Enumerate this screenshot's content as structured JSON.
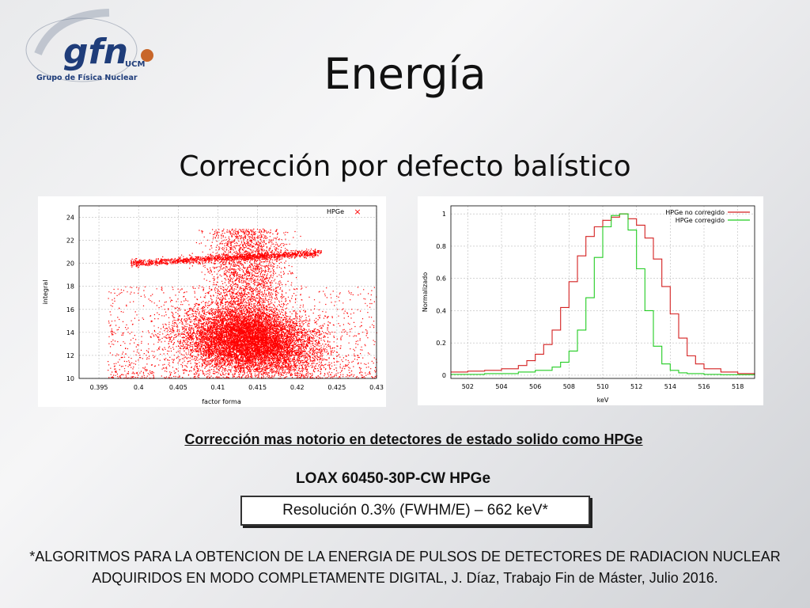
{
  "logo": {
    "text": "gfn",
    "sub": "UCM",
    "caption": "Grupo de Física Nuclear"
  },
  "slide": {
    "title": "Energía",
    "subtitle": "Corrección por defecto balístico",
    "note": "Corrección mas notorio en detectores de estado solido como HPGe",
    "detector": "LOAX 60450-30P-CW HPGe",
    "resolution": "Resolución 0.3% (FWHM/E) – 662 keV*",
    "reference": "*ALGORITMOS PARA LA OBTENCION DE LA ENERGIA DE PULSOS DE DETECTORES DE RADIACION NUCLEAR ADQUIRIDOS EN MODO COMPLETAMENTE DIGITAL, J. Díaz, Trabajo Fin de Máster, Julio 2016."
  },
  "chart_data": [
    {
      "type": "scatter",
      "xlabel": "factor forma",
      "ylabel": "integral",
      "xlim": [
        0.3925,
        0.43
      ],
      "ylim": [
        10,
        25
      ],
      "xticks": [
        "0.395",
        "0.4",
        "0.405",
        "0.41",
        "0.415",
        "0.42",
        "0.425",
        "0.43"
      ],
      "yticks": [
        "10",
        "12",
        "14",
        "16",
        "18",
        "20",
        "22",
        "24"
      ],
      "grid": true,
      "legend_position": "top-right",
      "series": [
        {
          "name": "HPGe",
          "color": "#ff0000",
          "marker": "×"
        }
      ],
      "clusters": [
        {
          "label": "band",
          "x_range": [
            0.399,
            0.423
          ],
          "y_at_start": 20.0,
          "y_at_end": 20.9
        },
        {
          "label": "main",
          "center": [
            0.414,
            13.2
          ],
          "x_spread": [
            0.405,
            0.428
          ],
          "y_spread": [
            10,
            18
          ]
        },
        {
          "label": "column",
          "x_range": [
            0.409,
            0.418
          ],
          "y_range": [
            14,
            23
          ]
        }
      ]
    },
    {
      "type": "line",
      "xlabel": "keV",
      "ylabel": "Normalizado",
      "xlim": [
        501,
        519
      ],
      "ylim": [
        -0.02,
        1.05
      ],
      "xticks": [
        "502",
        "504",
        "506",
        "508",
        "510",
        "512",
        "514",
        "516",
        "518"
      ],
      "yticks": [
        "0",
        "0.2",
        "0.4",
        "0.6",
        "0.8",
        "1"
      ],
      "grid": true,
      "legend_position": "top-right",
      "series": [
        {
          "name": "HPGe no corregido",
          "color": "#d42020",
          "x": [
            501,
            502,
            503,
            504,
            505,
            505.5,
            506,
            506.5,
            507,
            507.5,
            508,
            508.5,
            509,
            509.5,
            510,
            510.5,
            511,
            511.5,
            512,
            512.5,
            513,
            513.5,
            514,
            514.5,
            515,
            515.5,
            516,
            517,
            518,
            519
          ],
          "y": [
            0.02,
            0.025,
            0.03,
            0.04,
            0.06,
            0.09,
            0.13,
            0.19,
            0.28,
            0.42,
            0.58,
            0.74,
            0.86,
            0.92,
            0.96,
            0.98,
            1.0,
            0.97,
            0.93,
            0.85,
            0.72,
            0.55,
            0.38,
            0.23,
            0.12,
            0.07,
            0.04,
            0.02,
            0.01,
            0.005
          ]
        },
        {
          "name": "HPGe corregido",
          "color": "#22cc22",
          "x": [
            501,
            503,
            505,
            506,
            507,
            507.5,
            508,
            508.5,
            509,
            509.5,
            510,
            510.5,
            511,
            511.5,
            512,
            512.5,
            513,
            513.5,
            514,
            514.5,
            515,
            516,
            517,
            519
          ],
          "y": [
            0.005,
            0.01,
            0.02,
            0.03,
            0.05,
            0.08,
            0.15,
            0.28,
            0.48,
            0.73,
            0.92,
            0.99,
            1.0,
            0.9,
            0.66,
            0.4,
            0.18,
            0.07,
            0.03,
            0.015,
            0.01,
            0.005,
            0.003,
            0.002
          ]
        }
      ]
    }
  ]
}
